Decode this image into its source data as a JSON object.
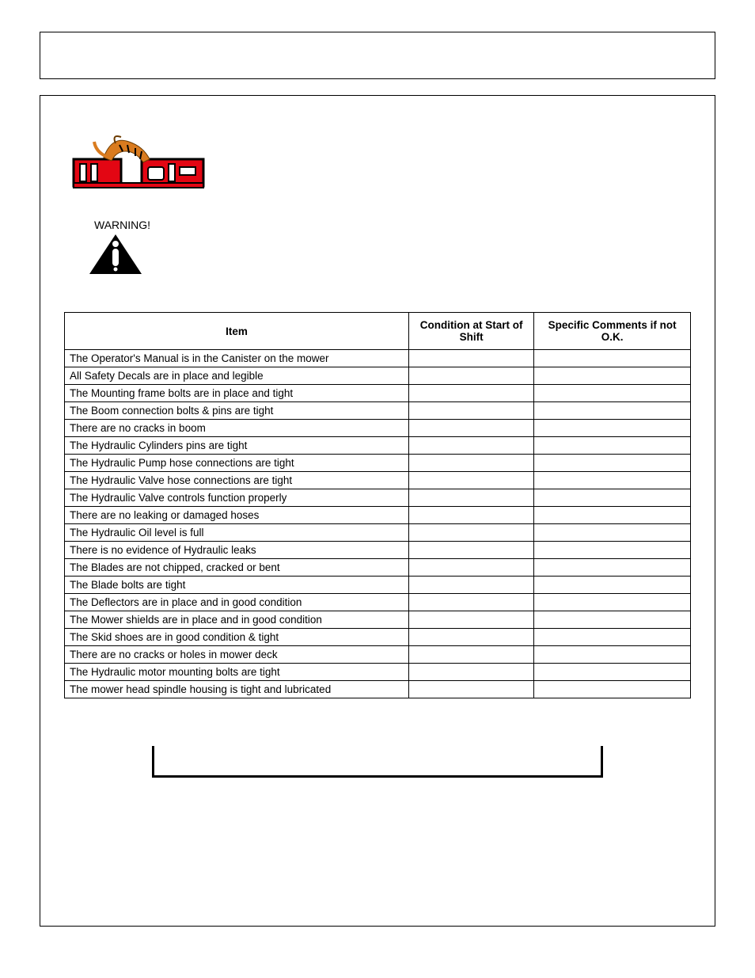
{
  "logo": {
    "text_left": "Ti",
    "text_right": "er",
    "bg_color": "#e30613",
    "text_color": "#ffffff",
    "outline_color": "#000000",
    "tiger_accent": "#d97b1f"
  },
  "warning": {
    "label": "WARNING!",
    "triangle_color": "#000000",
    "bang_color": "#ffffff"
  },
  "checklist": {
    "headers": {
      "item": "Item",
      "condition": "Condition at Start of Shift",
      "comments": "Specific Comments if not O.K."
    },
    "rows": [
      "The Operator's Manual is in the Canister on the mower",
      "All Safety Decals are in place and legible",
      "The Mounting frame bolts are in place and tight",
      "The Boom connection bolts & pins are tight",
      "There are no cracks in boom",
      "The Hydraulic Cylinders pins are tight",
      "The Hydraulic Pump hose connections are tight",
      "The Hydraulic Valve hose connections are tight",
      "The Hydraulic Valve controls function properly",
      "There are no leaking or damaged hoses",
      "The Hydraulic Oil level is full",
      "There is no evidence of Hydraulic leaks",
      "The Blades are not chipped, cracked or bent",
      "The Blade bolts are tight",
      "The Deflectors are in place and in good condition",
      "The Mower shields are in place and in good condition",
      "The Skid shoes are in good condition & tight",
      "There are no cracks or holes in mower deck",
      "The Hydraulic motor mounting bolts are tight",
      "The mower head spindle housing is tight and lubricated"
    ]
  }
}
